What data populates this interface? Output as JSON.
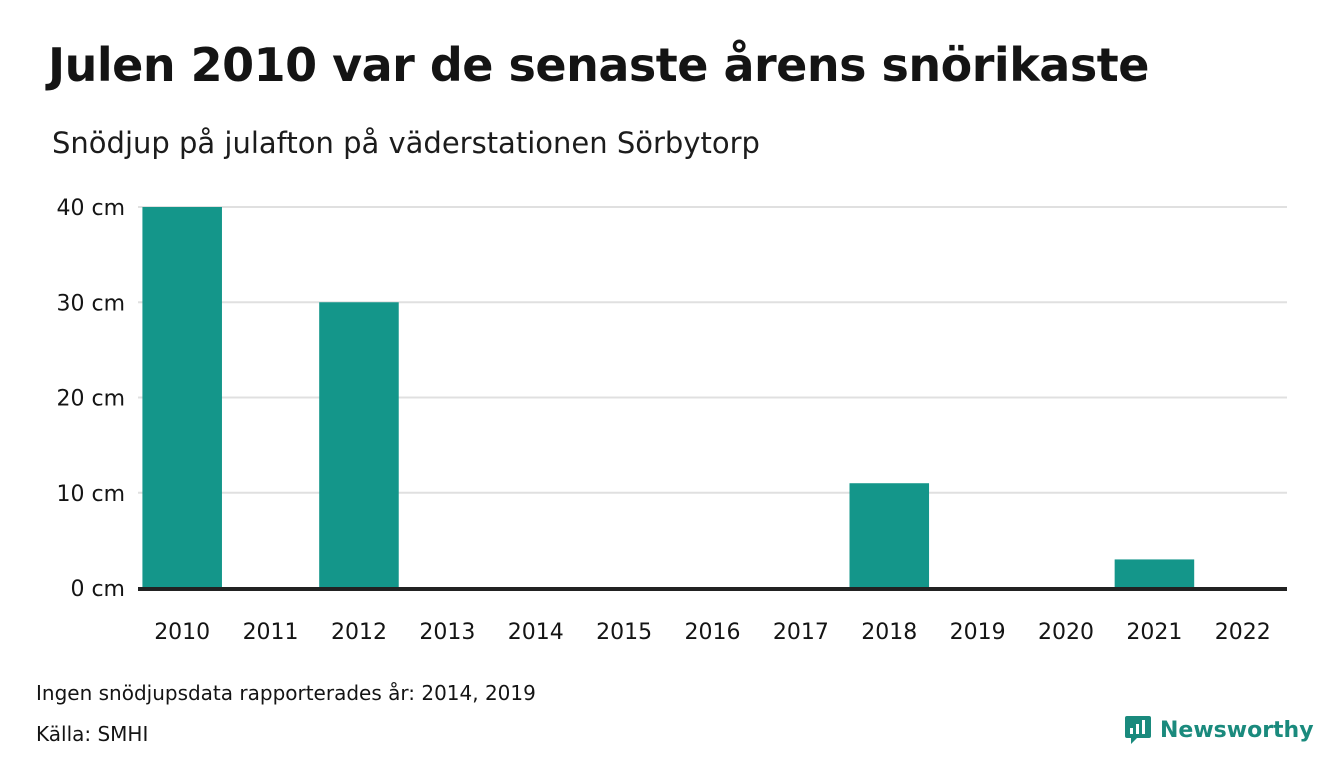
{
  "title": "Julen 2010 var de senaste årens snörikaste",
  "subtitle": "Snödjup på julafton på väderstationen Sörbytorp",
  "footnote": "Ingen snödjupsdata rapporterades år: 2014, 2019",
  "source": "Källa: SMHI",
  "brand": {
    "name": "Newsworthy",
    "icon": "bar-chart-speech-icon",
    "color": "#1a8a7d"
  },
  "colors": {
    "bar": "#14968a",
    "grid": "#e0e0e0",
    "baseline": "#222222"
  },
  "chart_data": {
    "type": "bar",
    "categories": [
      "2010",
      "2011",
      "2012",
      "2013",
      "2014",
      "2015",
      "2016",
      "2017",
      "2018",
      "2019",
      "2020",
      "2021",
      "2022"
    ],
    "values": [
      40,
      0,
      30,
      0,
      null,
      0,
      0,
      0,
      11,
      null,
      0,
      3,
      0
    ],
    "ylim": [
      0,
      40
    ],
    "yticks": [
      0,
      10,
      20,
      30,
      40
    ],
    "ytick_suffix": " cm",
    "xlabel": "",
    "ylabel": "",
    "grid": true,
    "legend": "none"
  }
}
